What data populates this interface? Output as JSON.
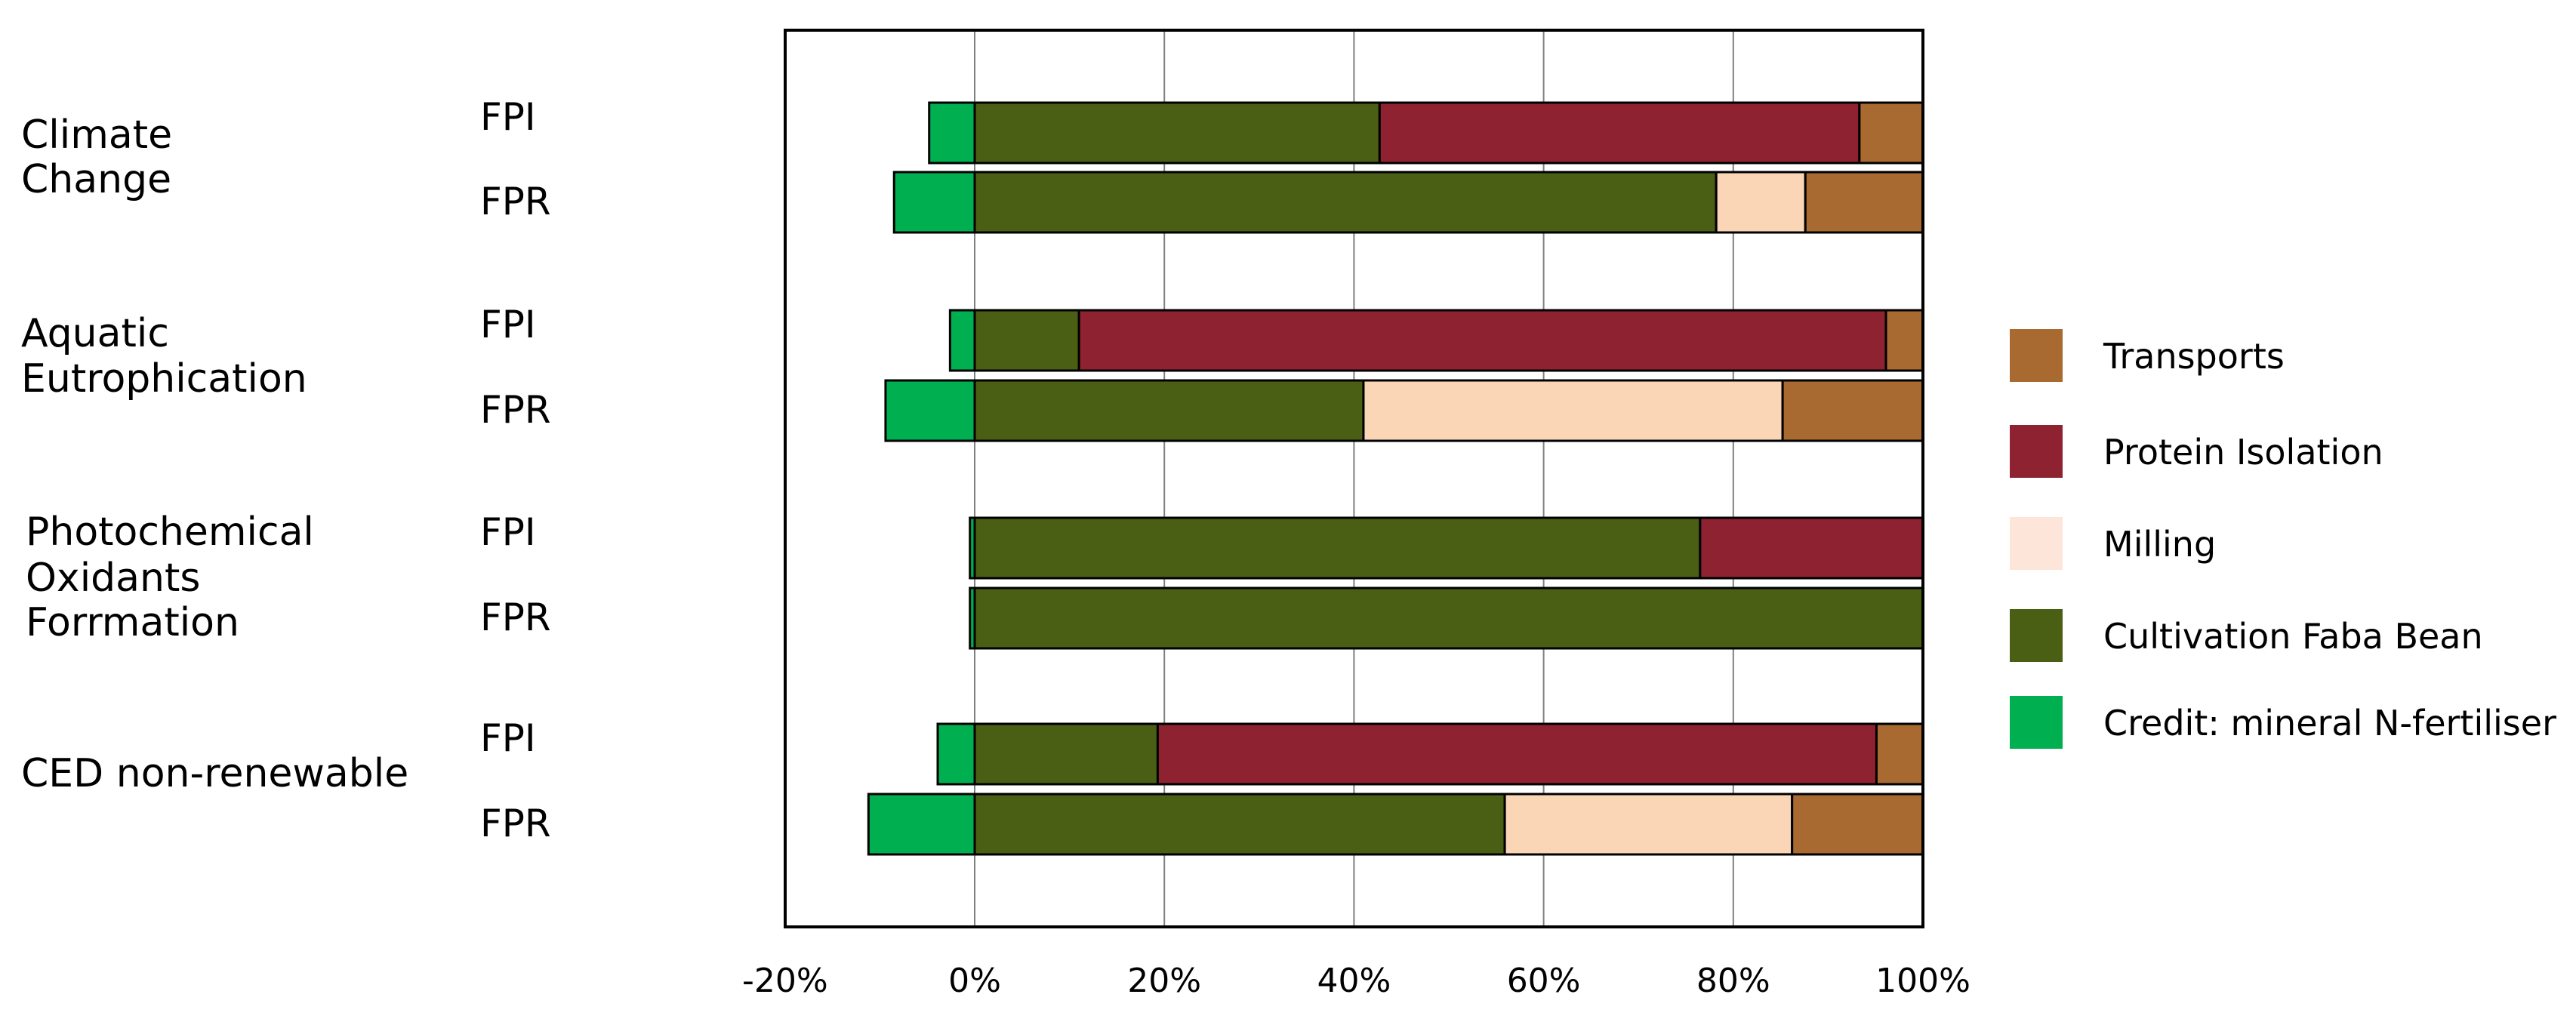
{
  "chart_data": {
    "type": "bar",
    "orientation": "horizontal",
    "stacked": true,
    "xlim": [
      -0.2,
      1.0
    ],
    "x_ticks": [
      -0.2,
      0,
      0.2,
      0.4,
      0.6,
      0.8,
      1.0
    ],
    "x_tick_labels": [
      "-20%",
      "0%",
      "20%",
      "40%",
      "60%",
      "80%",
      "100%"
    ],
    "grid": "vertical",
    "legend_position": "right",
    "groups": [
      {
        "label": "Climate\nChange",
        "bars": [
          "FPI",
          "FPR"
        ]
      },
      {
        "label": "Aquatic\nEutrophication",
        "bars": [
          "FPI",
          "FPR"
        ]
      },
      {
        "label": "Photochemical\nOxidants\nForrmation",
        "bars": [
          "FPI",
          "FPR"
        ]
      },
      {
        "label": "CED non-renewable",
        "bars": [
          "FPI",
          "FPR"
        ]
      }
    ],
    "series": [
      {
        "name": "Credit: mineral N-fertiliser",
        "color": "#00b050",
        "values": [
          -0.048,
          -0.085,
          -0.026,
          -0.094,
          -0.005,
          -0.005,
          -0.039,
          -0.112
        ]
      },
      {
        "name": "Cultivation Faba Bean",
        "color": "#4a5e14",
        "values": [
          0.427,
          0.782,
          0.11,
          0.41,
          0.765,
          1.0,
          0.193,
          0.559
        ]
      },
      {
        "name": "Milling",
        "color": "#fbd6b6",
        "values": [
          0.0,
          0.094,
          0.0,
          0.442,
          0.0,
          0.0,
          0.0,
          0.303
        ]
      },
      {
        "name": "Protein Isolation",
        "color": "#8e2230",
        "values": [
          0.506,
          0.0,
          0.851,
          0.0,
          0.235,
          0.0,
          0.758,
          0.0
        ]
      },
      {
        "name": "Transports",
        "color": "#a86a30",
        "values": [
          0.067,
          0.124,
          0.039,
          0.148,
          0.0,
          0.0,
          0.049,
          0.138
        ]
      }
    ],
    "legend_order": [
      "Transports",
      "Protein Isolation",
      "Milling",
      "Cultivation Faba Bean",
      "Credit: mineral N-fertiliser"
    ],
    "legend_swatch_colors": {
      "Milling": "#fde6d9"
    }
  }
}
